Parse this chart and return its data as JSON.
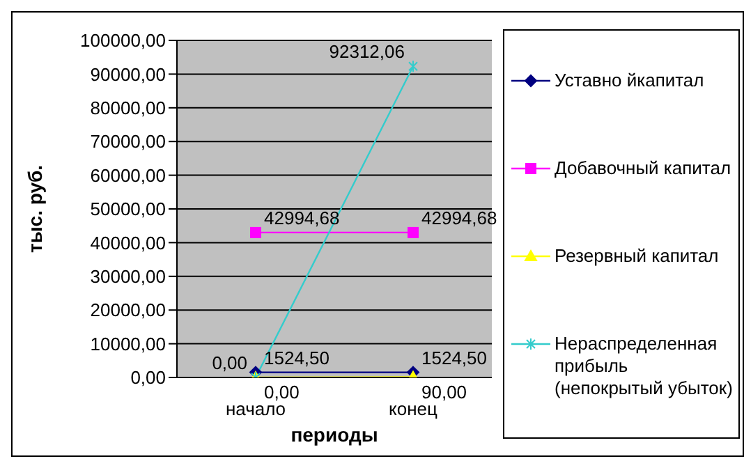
{
  "chart_data": {
    "type": "line",
    "xlabel": "периоды",
    "ylabel": "тыс. руб.",
    "categories": [
      "начало",
      "конец"
    ],
    "ylim": [
      0,
      100000
    ],
    "yticks": [
      {
        "value": 0,
        "label": "0,00"
      },
      {
        "value": 10000,
        "label": "10000,00"
      },
      {
        "value": 20000,
        "label": "20000,00"
      },
      {
        "value": 30000,
        "label": "30000,00"
      },
      {
        "value": 40000,
        "label": "40000,00"
      },
      {
        "value": 50000,
        "label": "50000,00"
      },
      {
        "value": 60000,
        "label": "60000,00"
      },
      {
        "value": 70000,
        "label": "70000,00"
      },
      {
        "value": 80000,
        "label": "80000,00"
      },
      {
        "value": 90000,
        "label": "90000,00"
      },
      {
        "value": 100000,
        "label": "100000,00"
      }
    ],
    "grid": "y",
    "legend": "right",
    "series": [
      {
        "name": "Уставно йкапитал",
        "color": "#000080",
        "marker": "diamond",
        "values": [
          1524.5,
          1524.5
        ],
        "value_labels": [
          "1524,50",
          "1524,50"
        ]
      },
      {
        "name": "Добавочный капитал",
        "color": "#ff00ff",
        "marker": "square",
        "values": [
          42994.68,
          42994.68
        ],
        "value_labels": [
          "42994,68",
          "42994,68"
        ]
      },
      {
        "name": "Резервный капитал",
        "color": "#ffff00",
        "marker": "triangle",
        "values": [
          0,
          90
        ],
        "value_labels": [
          "0,00",
          "90,00"
        ]
      },
      {
        "name": "Нераспределенная прибыль (непокрытый убыток)",
        "color": "#33cccc",
        "marker": "cross",
        "values": [
          0,
          92312.06
        ],
        "value_labels": [
          "0,00",
          "92312,06"
        ]
      }
    ]
  }
}
